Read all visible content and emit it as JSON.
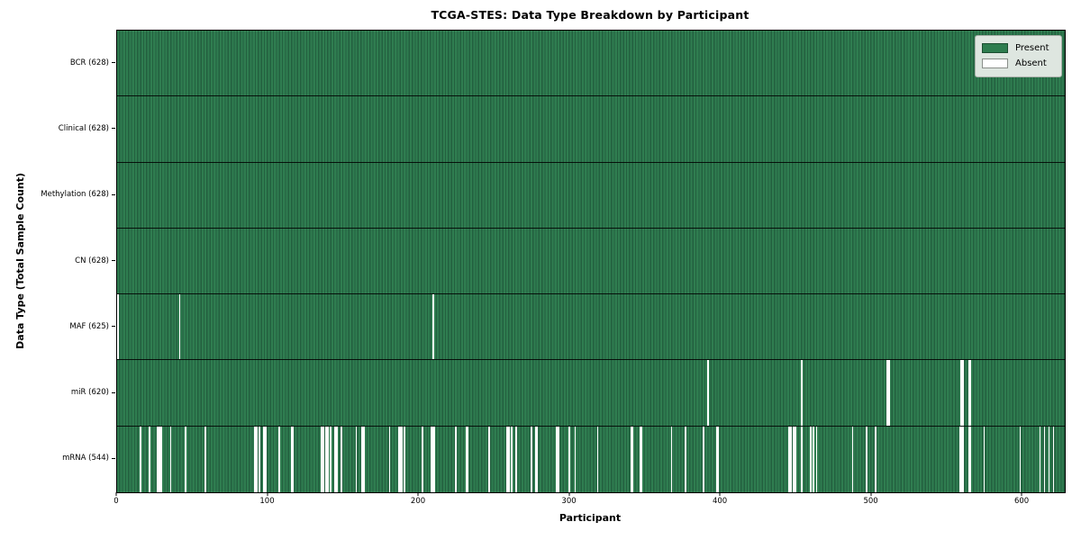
{
  "title": "TCGA-STES: Data Type Breakdown by Participant",
  "axes": {
    "xlabel": "Participant",
    "ylabel": "Data Type (Total Sample Count)"
  },
  "legend": {
    "present_label": "Present",
    "absent_label": "Absent"
  },
  "colors": {
    "present": "#2e7d4f",
    "present_stripe_dark": "#23603f",
    "absent": "#ffffff",
    "legend_bg": "#dee6e0"
  },
  "chart_data": {
    "type": "heatmap",
    "title": "TCGA-STES: Data Type Breakdown by Participant",
    "xlabel": "Participant",
    "ylabel": "Data Type (Total Sample Count)",
    "legend": [
      "Present",
      "Absent"
    ],
    "legend_position": "upper right",
    "n_participants": 628,
    "x_range": [
      0,
      628
    ],
    "x_ticks": [
      0,
      100,
      200,
      300,
      400,
      500,
      600
    ],
    "rows": [
      {
        "label": "BCR (628)",
        "data_type": "BCR",
        "present_count": 628,
        "absent_participants": []
      },
      {
        "label": "Clinical (628)",
        "data_type": "Clinical",
        "present_count": 628,
        "absent_participants": []
      },
      {
        "label": "Methylation (628)",
        "data_type": "Methylation",
        "present_count": 628,
        "absent_participants": []
      },
      {
        "label": "CN (628)",
        "data_type": "CN",
        "present_count": 628,
        "absent_participants": []
      },
      {
        "label": "MAF (625)",
        "data_type": "MAF",
        "present_count": 625,
        "absent_participants": [
          0,
          41,
          209
        ]
      },
      {
        "label": "miR (620)",
        "data_type": "miR",
        "present_count": 620,
        "absent_participants": [
          391,
          453,
          510,
          511,
          559,
          560,
          564,
          565
        ]
      },
      {
        "label": "mRNA (544)",
        "data_type": "mRNA",
        "present_count": 544,
        "absent_participants": [
          15,
          21,
          26,
          27,
          28,
          29,
          35,
          45,
          58,
          91,
          92,
          94,
          97,
          98,
          107,
          115,
          116,
          135,
          136,
          138,
          139,
          141,
          144,
          145,
          148,
          158,
          162,
          163,
          180,
          186,
          187,
          188,
          190,
          202,
          208,
          209,
          210,
          224,
          231,
          232,
          246,
          258,
          259,
          261,
          264,
          274,
          277,
          278,
          291,
          292,
          299,
          303,
          318,
          340,
          341,
          346,
          347,
          367,
          376,
          388,
          397,
          398,
          445,
          446,
          448,
          449,
          453,
          459,
          461,
          463,
          487,
          496,
          502,
          558,
          559,
          560,
          564,
          565,
          574,
          598,
          611,
          614,
          617,
          620
        ]
      }
    ]
  }
}
